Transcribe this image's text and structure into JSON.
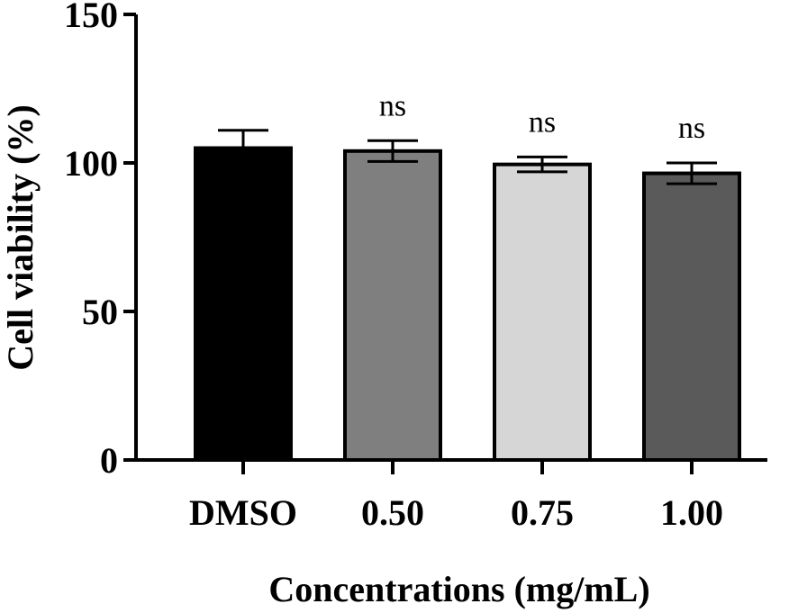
{
  "chart_data": {
    "type": "bar",
    "title": "",
    "xlabel": "Concentrations (mg/mL)",
    "ylabel": "Cell viability (%)",
    "ylim": [
      0,
      150
    ],
    "yticks": [
      0,
      50,
      100,
      150
    ],
    "categories": [
      "DMSO",
      "0.50",
      "0.75",
      "1.00"
    ],
    "values": [
      105,
      104,
      99.5,
      96.5
    ],
    "errors": [
      6,
      3.5,
      2.5,
      3.5
    ],
    "bar_colors": [
      "#000000",
      "#7f7f7f",
      "#d6d6d6",
      "#5a5a5a"
    ],
    "annotations": [
      "",
      "ns",
      "ns",
      "ns"
    ]
  }
}
